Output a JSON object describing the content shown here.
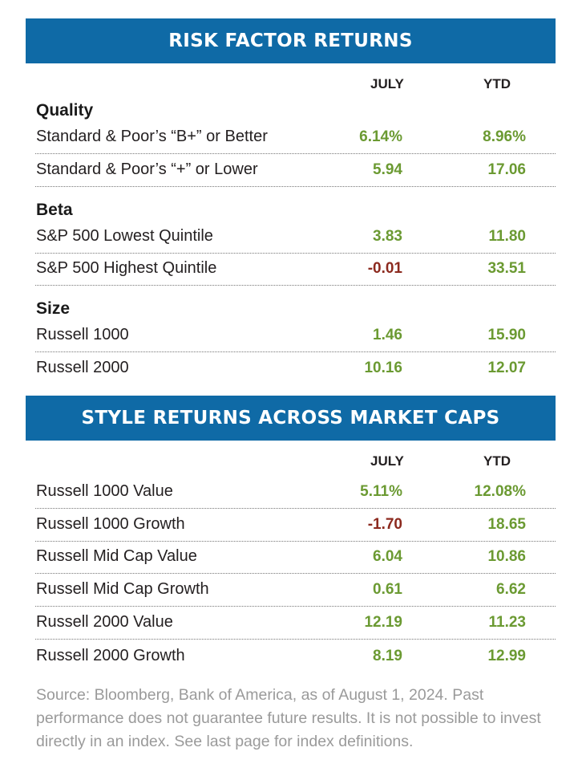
{
  "colors": {
    "banner": "#0f6aa6",
    "positive": "#6b9a32",
    "negative": "#8c2a1f",
    "text": "#231f20",
    "source": "#9a9a9a"
  },
  "risk_factor": {
    "title": "RISK FACTOR RETURNS",
    "col_july": "JULY",
    "col_ytd": "YTD",
    "groups": [
      {
        "name": "Quality",
        "rows": [
          {
            "label": "Standard & Poor’s “B+” or Better",
            "july": "6.14%",
            "ytd": "8.96%",
            "july_sign": "pos",
            "ytd_sign": "pos"
          },
          {
            "label": "Standard & Poor’s “+” or Lower",
            "july": "5.94",
            "ytd": "17.06",
            "july_sign": "pos",
            "ytd_sign": "pos"
          }
        ]
      },
      {
        "name": "Beta",
        "rows": [
          {
            "label": "S&P 500 Lowest Quintile",
            "july": "3.83",
            "ytd": "11.80",
            "july_sign": "pos",
            "ytd_sign": "pos"
          },
          {
            "label": "S&P 500 Highest Quintile",
            "july": "-0.01",
            "ytd": "33.51",
            "july_sign": "neg",
            "ytd_sign": "pos"
          }
        ]
      },
      {
        "name": "Size",
        "rows": [
          {
            "label": "Russell 1000",
            "july": "1.46",
            "ytd": "15.90",
            "july_sign": "pos",
            "ytd_sign": "pos"
          },
          {
            "label": "Russell 2000",
            "july": "10.16",
            "ytd": "12.07",
            "july_sign": "pos",
            "ytd_sign": "pos"
          }
        ]
      }
    ]
  },
  "style_returns": {
    "title": "STYLE RETURNS ACROSS MARKET CAPS",
    "col_july": "JULY",
    "col_ytd": "YTD",
    "rows": [
      {
        "label": "Russell 1000 Value",
        "july": "5.11%",
        "ytd": "12.08%",
        "july_sign": "pos",
        "ytd_sign": "pos"
      },
      {
        "label": "Russell 1000 Growth",
        "july": "-1.70",
        "ytd": "18.65",
        "july_sign": "neg",
        "ytd_sign": "pos"
      },
      {
        "label": "Russell Mid Cap Value",
        "july": "6.04",
        "ytd": "10.86",
        "july_sign": "pos",
        "ytd_sign": "pos"
      },
      {
        "label": "Russell Mid Cap Growth",
        "july": "0.61",
        "ytd": "6.62",
        "july_sign": "pos",
        "ytd_sign": "pos"
      },
      {
        "label": "Russell 2000 Value",
        "july": "12.19",
        "ytd": "11.23",
        "july_sign": "pos",
        "ytd_sign": "pos"
      },
      {
        "label": "Russell 2000 Growth",
        "july": "8.19",
        "ytd": "12.99",
        "july_sign": "pos",
        "ytd_sign": "pos"
      }
    ]
  },
  "source": "Source: Bloomberg, Bank of America, as of August 1, 2024. Past performance does not guarantee future results. It is not possible to invest directly in an index. See last page for index definitions."
}
